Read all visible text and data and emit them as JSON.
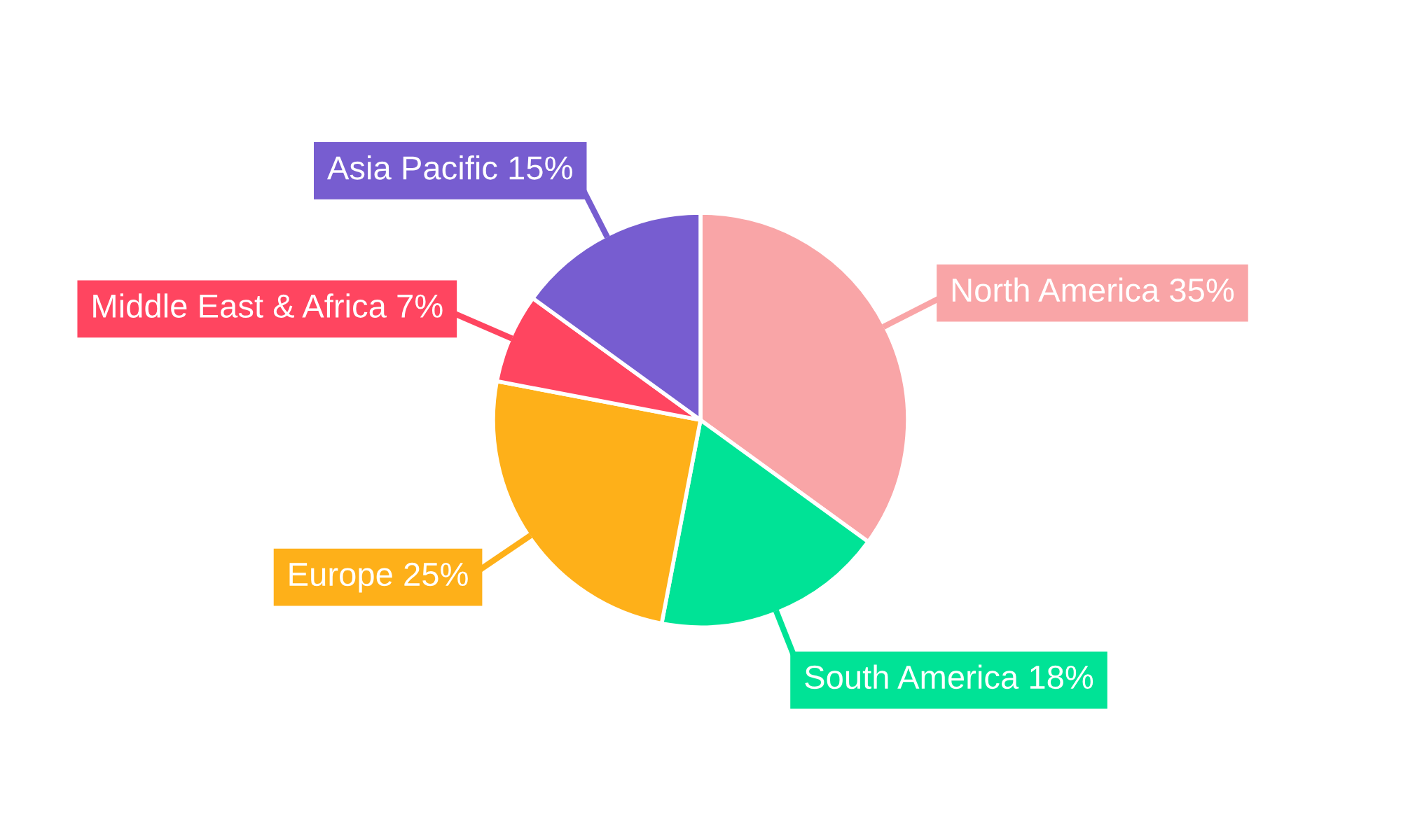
{
  "chart_data": {
    "type": "pie",
    "categories": [
      "North America",
      "South America",
      "Europe",
      "Middle East & Africa",
      "Asia Pacific"
    ],
    "values": [
      35,
      18,
      25,
      7,
      15
    ],
    "value_labels": [
      "35%",
      "18%",
      "25%",
      "7%",
      "15%"
    ],
    "colors": [
      "#f9a5a7",
      "#00e396",
      "#feb019",
      "#ff4560",
      "#775dd0"
    ],
    "legend": false
  }
}
